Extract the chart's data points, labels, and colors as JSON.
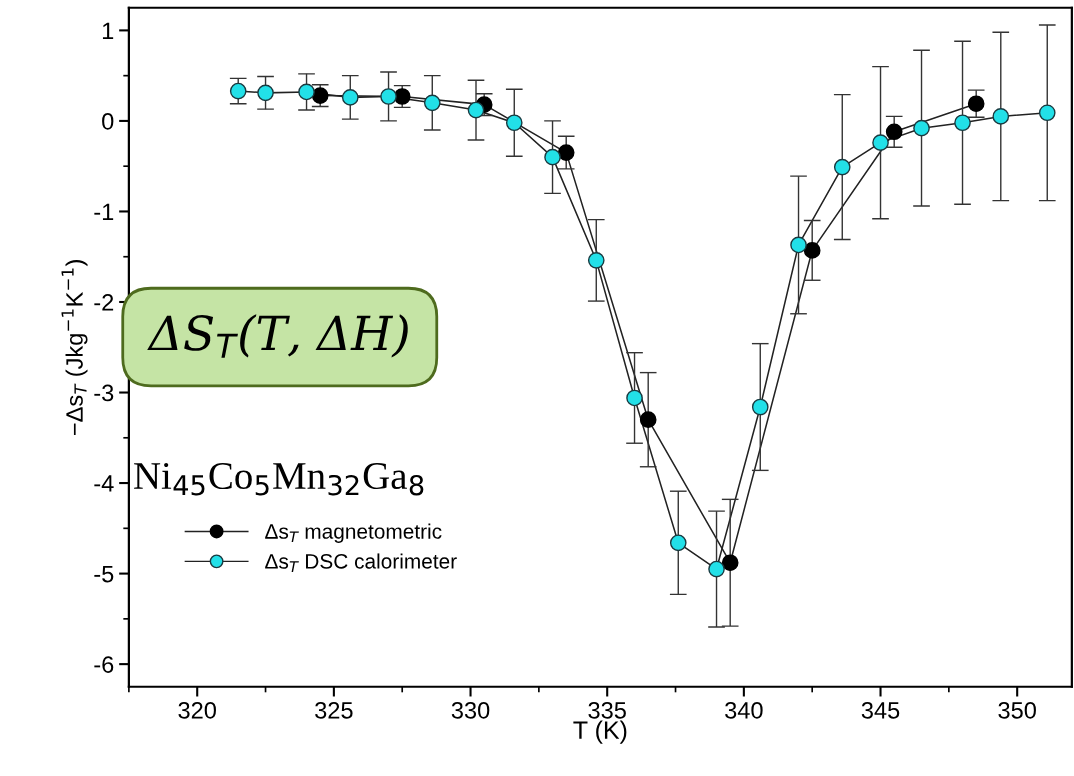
{
  "chart_data": {
    "type": "line",
    "xlabel": "T (K)",
    "ylabel": "−Δs$_{T}$ (Jkg$^{−1}$K$^{−1}$)",
    "xlim": [
      317.5,
      352
    ],
    "xticks": [
      320,
      325,
      330,
      335,
      340,
      345,
      350
    ],
    "ylim": [
      -6.25,
      1.25
    ],
    "yticks": [
      -6,
      -5,
      -4,
      -3,
      -2,
      -1,
      0,
      1
    ],
    "marker": "circle",
    "line_style": "solid",
    "grid": false,
    "legend": "bottom left",
    "annotations": [
      "ΔS$_{T}$(T, ΔH)",
      "Ni$_{45}$Co$_{5}$Mn$_{32}$Ga$_{8}$"
    ],
    "series": [
      {
        "name": "Δs$_{T}$ magnetometric",
        "color": "#000000",
        "x": [
          324.5,
          327.5,
          330.5,
          333.5,
          336.5,
          339.5,
          342.5,
          345.5,
          348.5
        ],
        "values": [
          0.28,
          0.27,
          0.18,
          -0.35,
          -3.3,
          -4.88,
          -1.43,
          -0.12,
          0.19
        ],
        "errors": [
          0.12,
          0.12,
          0.12,
          0.18,
          0.52,
          0.7,
          0.33,
          0.17,
          0.15
        ]
      },
      {
        "name": "Δs$_{T}$ DSC calorimeter",
        "color": "#22e0e8",
        "x": [
          321.5,
          322.5,
          324.0,
          325.6,
          327.0,
          328.6,
          330.2,
          331.6,
          333.0,
          334.6,
          336.0,
          337.6,
          339.0,
          340.6,
          342.0,
          343.6,
          345.0,
          346.5,
          348.0,
          349.4,
          351.1
        ],
        "values": [
          0.33,
          0.31,
          0.32,
          0.26,
          0.27,
          0.2,
          0.12,
          -0.02,
          -0.4,
          -1.54,
          -3.06,
          -4.66,
          -4.95,
          -3.16,
          -1.37,
          -0.51,
          -0.24,
          -0.08,
          -0.02,
          0.05,
          0.09
        ],
        "errors": [
          0.14,
          0.18,
          0.2,
          0.24,
          0.27,
          0.3,
          0.33,
          0.37,
          0.4,
          0.45,
          0.5,
          0.57,
          0.64,
          0.7,
          0.76,
          0.8,
          0.84,
          0.86,
          0.9,
          0.93,
          0.97
        ]
      }
    ]
  }
}
